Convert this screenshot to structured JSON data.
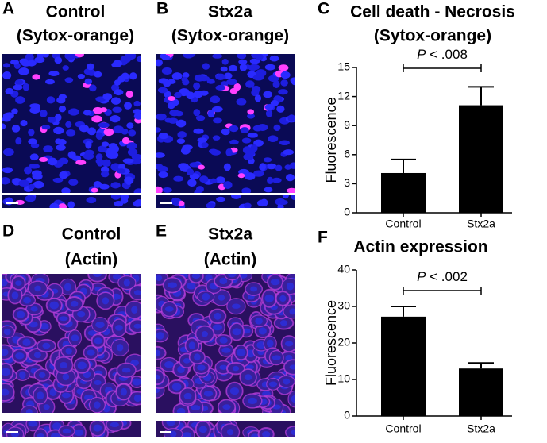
{
  "panels": [
    {
      "letter": "A",
      "title": [
        "Control",
        "(Sytox-orange)"
      ]
    },
    {
      "letter": "B",
      "title": [
        "Stx2a",
        "(Sytox-orange)"
      ]
    },
    {
      "letter": "D",
      "title": [
        "Control",
        "(Actin)"
      ]
    },
    {
      "letter": "E",
      "title": [
        "Stx2a",
        "(Actin)"
      ]
    }
  ],
  "chart_data": [
    {
      "type": "bar",
      "letter": "C",
      "title": "Cell death  - Necrosis",
      "subtitle": "(Sytox-orange)",
      "ylabel": "Fluorescence",
      "categories": [
        "Control",
        "Stx2a"
      ],
      "values": [
        4.1,
        11.1
      ],
      "errors": [
        1.4,
        1.9
      ],
      "color": "#000000",
      "ylim": [
        0,
        15
      ],
      "yticks": [
        0,
        3,
        6,
        9,
        12,
        15
      ],
      "annotation": [
        "P",
        " < .008"
      ]
    },
    {
      "type": "bar",
      "letter": "F",
      "title": "Actin expression",
      "ylabel": "Fluorescence",
      "categories": [
        "Control",
        "Stx2a"
      ],
      "values": [
        27.2,
        13
      ],
      "errors": [
        2.8,
        1.5
      ],
      "color": "#000000",
      "ylim": [
        0,
        40
      ],
      "yticks": [
        0,
        10,
        20,
        30,
        40
      ],
      "annotation": [
        "P",
        " < .002"
      ]
    }
  ]
}
